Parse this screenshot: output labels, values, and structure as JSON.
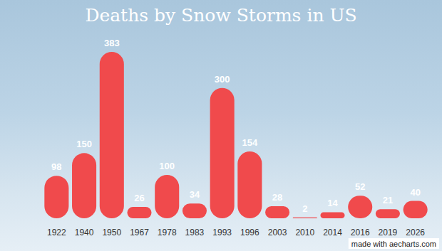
{
  "chart_data": {
    "type": "bar",
    "title": "Deaths by Snow Storms in US",
    "categories": [
      "1922",
      "1940",
      "1950",
      "1967",
      "1978",
      "1983",
      "1993",
      "1996",
      "2003",
      "2010",
      "2014",
      "2016",
      "2019",
      "2026"
    ],
    "values": [
      98,
      150,
      383,
      26,
      100,
      34,
      300,
      154,
      28,
      2,
      14,
      52,
      21,
      40
    ],
    "color": "#f04a4c",
    "ylim": [
      0,
      383
    ],
    "grid": false,
    "data_labels": true,
    "tick_labels": "x",
    "annotations": [
      "made with aecharts.com"
    ]
  }
}
